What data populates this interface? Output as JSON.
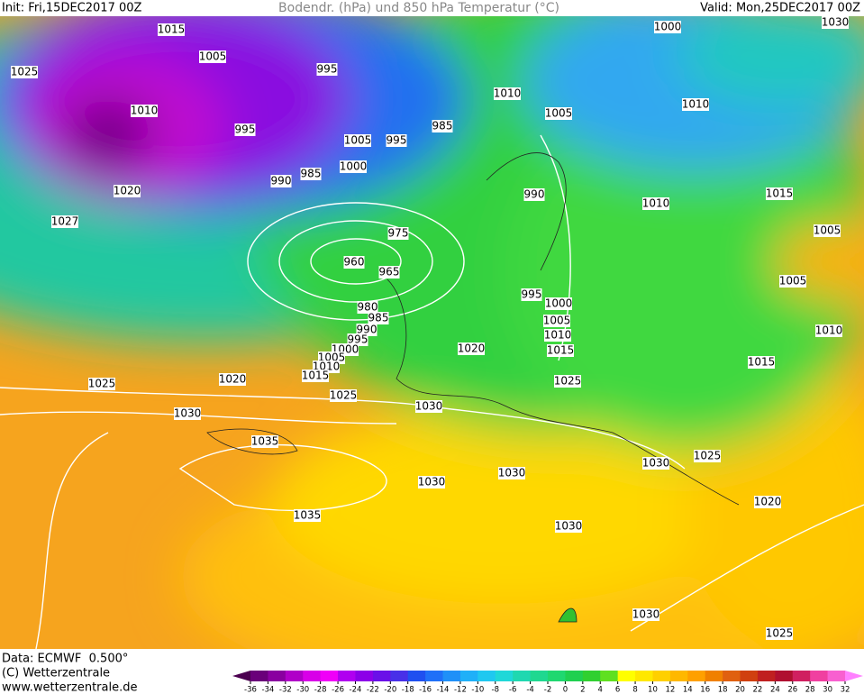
{
  "header": {
    "init": "Init: Fri,15DEC2017 00Z",
    "title": "Bodendr. (hPa) und 850 hPa Temperatur (°C)",
    "valid": "Valid: Mon,25DEC2017 00Z"
  },
  "footer": {
    "data": "Data: ECMWF  0.500°",
    "copyright": "(C) Wetterzentrale",
    "url": "www.wetterzentrale.de"
  },
  "map": {
    "isobar_labels": [
      1015,
      1005,
      1025,
      995,
      1010,
      995,
      1005,
      995,
      1000,
      985,
      990,
      1020,
      1027,
      975,
      960,
      965,
      980,
      985,
      990,
      995,
      1000,
      1005,
      1010,
      1015,
      1025,
      1020,
      1025,
      1030,
      1030,
      1035,
      1030,
      1035,
      1030,
      1030,
      1030,
      1025,
      1020,
      1030,
      1025,
      1025,
      1015,
      1010,
      1005,
      1000,
      995,
      1020,
      990,
      985,
      1010,
      1005,
      1000,
      1010,
      1030,
      1015,
      1010,
      1005,
      1005,
      1010,
      1015
    ]
  },
  "legend": {
    "ticks": [
      -36,
      -34,
      -32,
      -30,
      -28,
      -26,
      -24,
      -22,
      -20,
      -18,
      -16,
      -14,
      -12,
      -10,
      -8,
      -6,
      -4,
      -2,
      0,
      2,
      4,
      6,
      8,
      10,
      12,
      14,
      16,
      18,
      20,
      22,
      24,
      26,
      28,
      30,
      32
    ],
    "colors": [
      "#4b0050",
      "#6a007a",
      "#8a00a0",
      "#b000c8",
      "#d800e8",
      "#f000f8",
      "#b000f0",
      "#8c00e8",
      "#6a10e8",
      "#4830e8",
      "#2050f0",
      "#2070f8",
      "#2090f8",
      "#20b0f8",
      "#20c8f0",
      "#20d8d8",
      "#20d8b0",
      "#20d890",
      "#20d870",
      "#20d050",
      "#30d030",
      "#60e020",
      "#ffff00",
      "#ffe800",
      "#ffd000",
      "#ffb800",
      "#ffa000",
      "#f08000",
      "#e06010",
      "#d04010",
      "#c02020",
      "#b01030",
      "#d02060",
      "#f040a0",
      "#f860d0",
      "#ff80ff"
    ]
  }
}
